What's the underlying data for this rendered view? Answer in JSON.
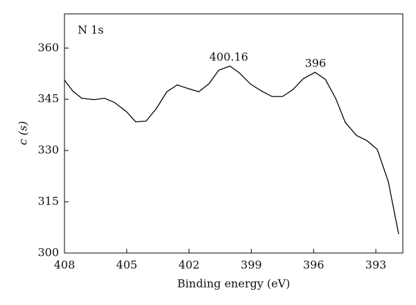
{
  "chart_data": {
    "type": "line",
    "title": "N 1s",
    "x_label": "Binding energy (eV)",
    "y_label": "c (s)",
    "annotations": [
      "400.16",
      "396"
    ],
    "x": [
      408,
      407.6,
      407.17,
      406.57,
      406.07,
      405.6,
      405,
      404.57,
      404.07,
      403.57,
      403.07,
      402.57,
      402.07,
      401.53,
      401.03,
      400.57,
      400.03,
      399.57,
      399.03,
      398.5,
      398,
      397.5,
      397,
      396.5,
      395.93,
      395.43,
      394.93,
      394.47,
      393.93,
      393.43,
      392.93,
      392.4,
      391.9
    ],
    "series": [
      {
        "name": "N 1s",
        "color": "#000000",
        "values": [
          350.6,
          347.4,
          345.3,
          344.9,
          345.3,
          344.1,
          341.3,
          338.4,
          338.6,
          342.3,
          347.2,
          349.2,
          348.2,
          347.2,
          349.6,
          353.5,
          354.7,
          352.7,
          349.4,
          347.4,
          345.8,
          345.8,
          347.8,
          351.0,
          352.9,
          350.8,
          345.2,
          338.2,
          334.4,
          332.9,
          330.3,
          320.9,
          305.5
        ]
      }
    ],
    "xlim": [
      408,
      391.7
    ],
    "ylim": [
      300,
      370
    ],
    "xticks": [
      408,
      405,
      402,
      399,
      396,
      393
    ],
    "yticks": [
      300,
      315,
      330,
      345,
      360
    ]
  }
}
